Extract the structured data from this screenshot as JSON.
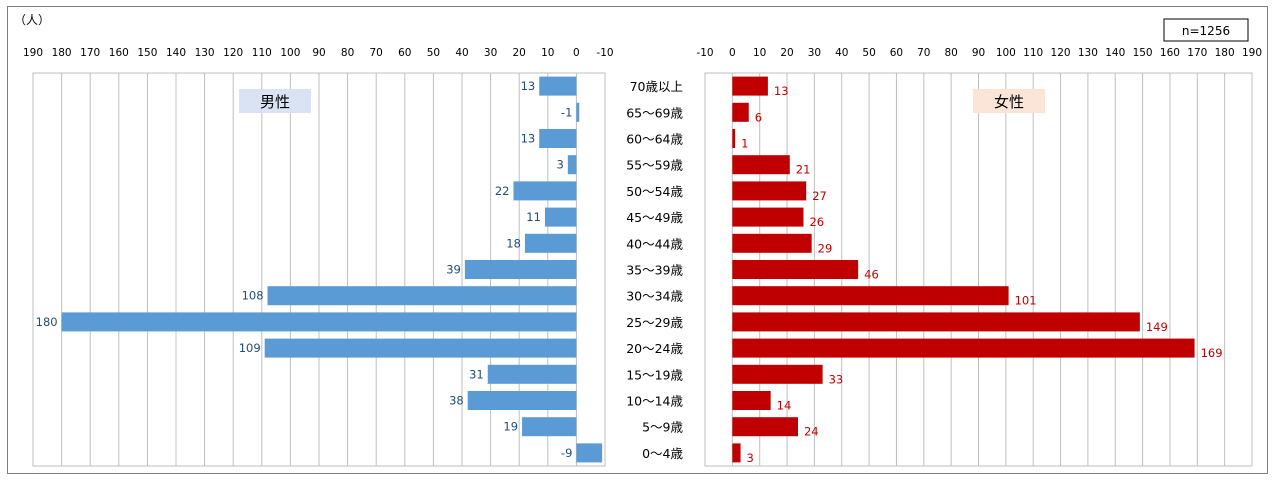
{
  "chart_data": {
    "type": "bar",
    "unit_label": "（人）",
    "sample_label": "n=1256",
    "categories": [
      "70歳以上",
      "65〜69歳",
      "60〜64歳",
      "55〜59歳",
      "50〜54歳",
      "45〜49歳",
      "40〜44歳",
      "35〜39歳",
      "30〜34歳",
      "25〜29歳",
      "20〜24歳",
      "15〜19歳",
      "10〜14歳",
      "5〜9歳",
      "0〜4歳"
    ],
    "series": [
      {
        "name": "男性",
        "values": [
          13,
          -1,
          13,
          3,
          22,
          11,
          18,
          39,
          108,
          180,
          109,
          31,
          38,
          19,
          -9
        ],
        "color": "#5b9bd5",
        "label_color": "#1f4e79",
        "title_bg": "#dae3f3"
      },
      {
        "name": "女性",
        "values": [
          13,
          6,
          1,
          21,
          27,
          26,
          29,
          46,
          101,
          149,
          169,
          33,
          14,
          24,
          3
        ],
        "color": "#c00000",
        "label_color": "#c00000",
        "title_bg": "#fbe5d6"
      }
    ],
    "xlim": [
      -10,
      190
    ],
    "tick_step": 10,
    "grid": true
  }
}
